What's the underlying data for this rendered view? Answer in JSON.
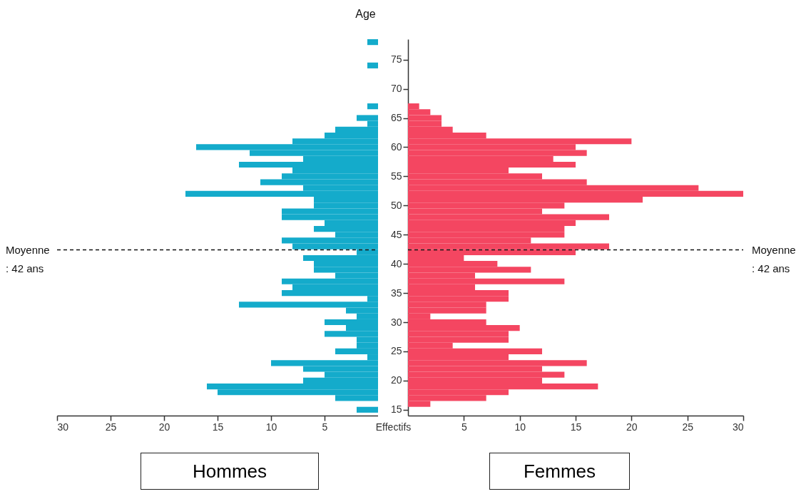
{
  "chart_data": [
    {
      "type": "bar",
      "orientation": "horizontal",
      "title": "Hommes",
      "xlabel": null,
      "color": "#14abcb",
      "tick_labels": "x",
      "x": [
        15,
        16,
        17,
        18,
        19,
        20,
        21,
        22,
        23,
        24,
        25,
        26,
        27,
        28,
        29,
        30,
        31,
        32,
        33,
        34,
        35,
        36,
        37,
        38,
        39,
        40,
        41,
        42,
        43,
        44,
        45,
        46,
        47,
        48,
        49,
        50,
        51,
        52,
        53,
        54,
        55,
        56,
        57,
        58,
        59,
        60,
        61,
        62,
        63,
        64,
        65,
        66,
        67,
        68,
        69,
        70,
        71,
        72,
        73,
        74,
        75,
        76,
        77,
        78
      ],
      "values": [
        2,
        0,
        4,
        15,
        16,
        7,
        5,
        7,
        10,
        1,
        4,
        2,
        2,
        5,
        3,
        5,
        2,
        3,
        13,
        1,
        9,
        8,
        9,
        4,
        6,
        6,
        7,
        2,
        8,
        9,
        4,
        6,
        5,
        9,
        9,
        6,
        6,
        18,
        7,
        11,
        9,
        8,
        13,
        7,
        12,
        17,
        8,
        5,
        4,
        1,
        2,
        0,
        1,
        0,
        0,
        0,
        0,
        0,
        0,
        1,
        0,
        0,
        0,
        1
      ],
      "xlim": [
        30,
        0
      ],
      "xticks": [
        30,
        25,
        20,
        15,
        10,
        5
      ],
      "ylim": [
        14,
        78.5
      ],
      "ref_lines": [
        {
          "axis": "y",
          "value": 42.4,
          "label": "Moyenne : 42 ans",
          "line_style": "dashed"
        }
      ]
    },
    {
      "type": "bar",
      "orientation": "horizontal",
      "title": "Femmes",
      "xlabel": "Effectifs",
      "ylabel": "Age",
      "color": "#f44661",
      "x": [
        15,
        16,
        17,
        18,
        19,
        20,
        21,
        22,
        23,
        24,
        25,
        26,
        27,
        28,
        29,
        30,
        31,
        32,
        33,
        34,
        35,
        36,
        37,
        38,
        39,
        40,
        41,
        42,
        43,
        44,
        45,
        46,
        47,
        48,
        49,
        50,
        51,
        52,
        53,
        54,
        55,
        56,
        57,
        58,
        59,
        60,
        61,
        62,
        63,
        64,
        65,
        66,
        67,
        68,
        69,
        70,
        71,
        72,
        73,
        74,
        75,
        76,
        77,
        78
      ],
      "values": [
        0,
        2,
        7,
        9,
        17,
        12,
        14,
        12,
        16,
        9,
        12,
        4,
        9,
        9,
        10,
        7,
        2,
        7,
        7,
        9,
        9,
        6,
        14,
        6,
        11,
        8,
        5,
        15,
        18,
        11,
        14,
        14,
        15,
        18,
        12,
        14,
        21,
        30,
        26,
        16,
        12,
        9,
        15,
        13,
        16,
        15,
        20,
        7,
        4,
        3,
        3,
        2,
        1,
        0,
        0,
        0,
        0,
        0,
        0,
        0,
        0,
        0,
        0,
        0
      ],
      "xlim": [
        0,
        30
      ],
      "xticks": [
        5,
        10,
        15,
        20,
        25,
        30
      ],
      "ylim": [
        14,
        78.5
      ],
      "yticks": [
        15,
        20,
        25,
        30,
        35,
        40,
        45,
        50,
        55,
        60,
        65,
        70,
        75
      ],
      "ref_lines": [
        {
          "axis": "y",
          "value": 42.4,
          "label": "Moyenne : 42 ans",
          "line_style": "dashed"
        }
      ]
    }
  ]
}
